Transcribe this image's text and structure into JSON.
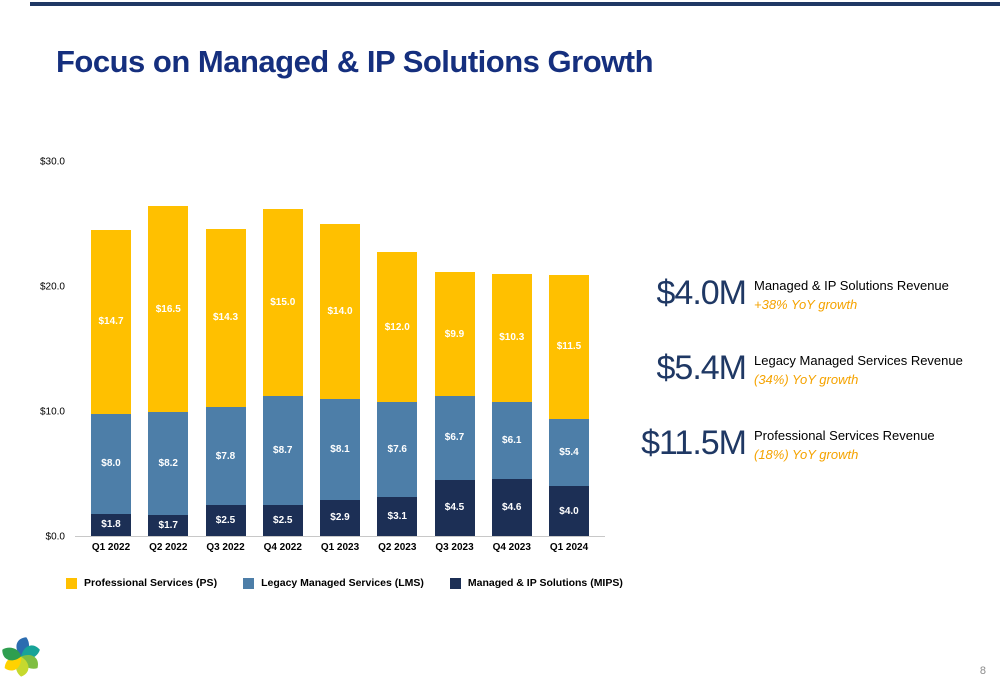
{
  "slide": {
    "title": "Focus on Managed & IP Solutions Growth",
    "page_number": "8",
    "accent_color": "#1F3864"
  },
  "chart_data": {
    "type": "bar",
    "stacked": true,
    "title": "",
    "xlabel": "",
    "ylabel": "",
    "ylim": [
      0,
      30
    ],
    "grid": false,
    "value_prefix": "$",
    "y_ticks": [
      "$30.0",
      "$20.0",
      "$10.0",
      "$0.0"
    ],
    "categories": [
      "Q1 2022",
      "Q2 2022",
      "Q3 2022",
      "Q4 2022",
      "Q1 2023",
      "Q2 2023",
      "Q3 2023",
      "Q4 2023",
      "Q1 2024"
    ],
    "series": [
      {
        "name": "Managed & IP Solutions (MIPS)",
        "color": "#1C2F55",
        "values": [
          1.8,
          1.7,
          2.5,
          2.5,
          2.9,
          3.1,
          4.5,
          4.6,
          4.0
        ]
      },
      {
        "name": "Legacy Managed Services (LMS)",
        "color": "#4D7EA8",
        "values": [
          8.0,
          8.2,
          7.8,
          8.7,
          8.1,
          7.6,
          6.7,
          6.1,
          5.4
        ]
      },
      {
        "name": "Professional Services (PS)",
        "color": "#FFC000",
        "values": [
          14.7,
          16.5,
          14.3,
          15.0,
          14.0,
          12.0,
          9.9,
          10.3,
          11.5
        ]
      }
    ],
    "legend_position": "bottom"
  },
  "legend": [
    {
      "label": "Professional Services (PS)",
      "color": "#FFC000"
    },
    {
      "label": "Legacy Managed Services (LMS)",
      "color": "#4D7EA8"
    },
    {
      "label": "Managed & IP Solutions (MIPS)",
      "color": "#1C2F55"
    }
  ],
  "callouts": [
    {
      "value": "$4.0M",
      "label": "Managed & IP Solutions Revenue",
      "growth": "+38% YoY growth"
    },
    {
      "value": "$5.4M",
      "label": "Legacy Managed Services Revenue",
      "growth": "(34%) YoY growth"
    },
    {
      "value": "$11.5M",
      "label": "Professional Services Revenue",
      "growth": "(18%) YoY growth"
    }
  ]
}
